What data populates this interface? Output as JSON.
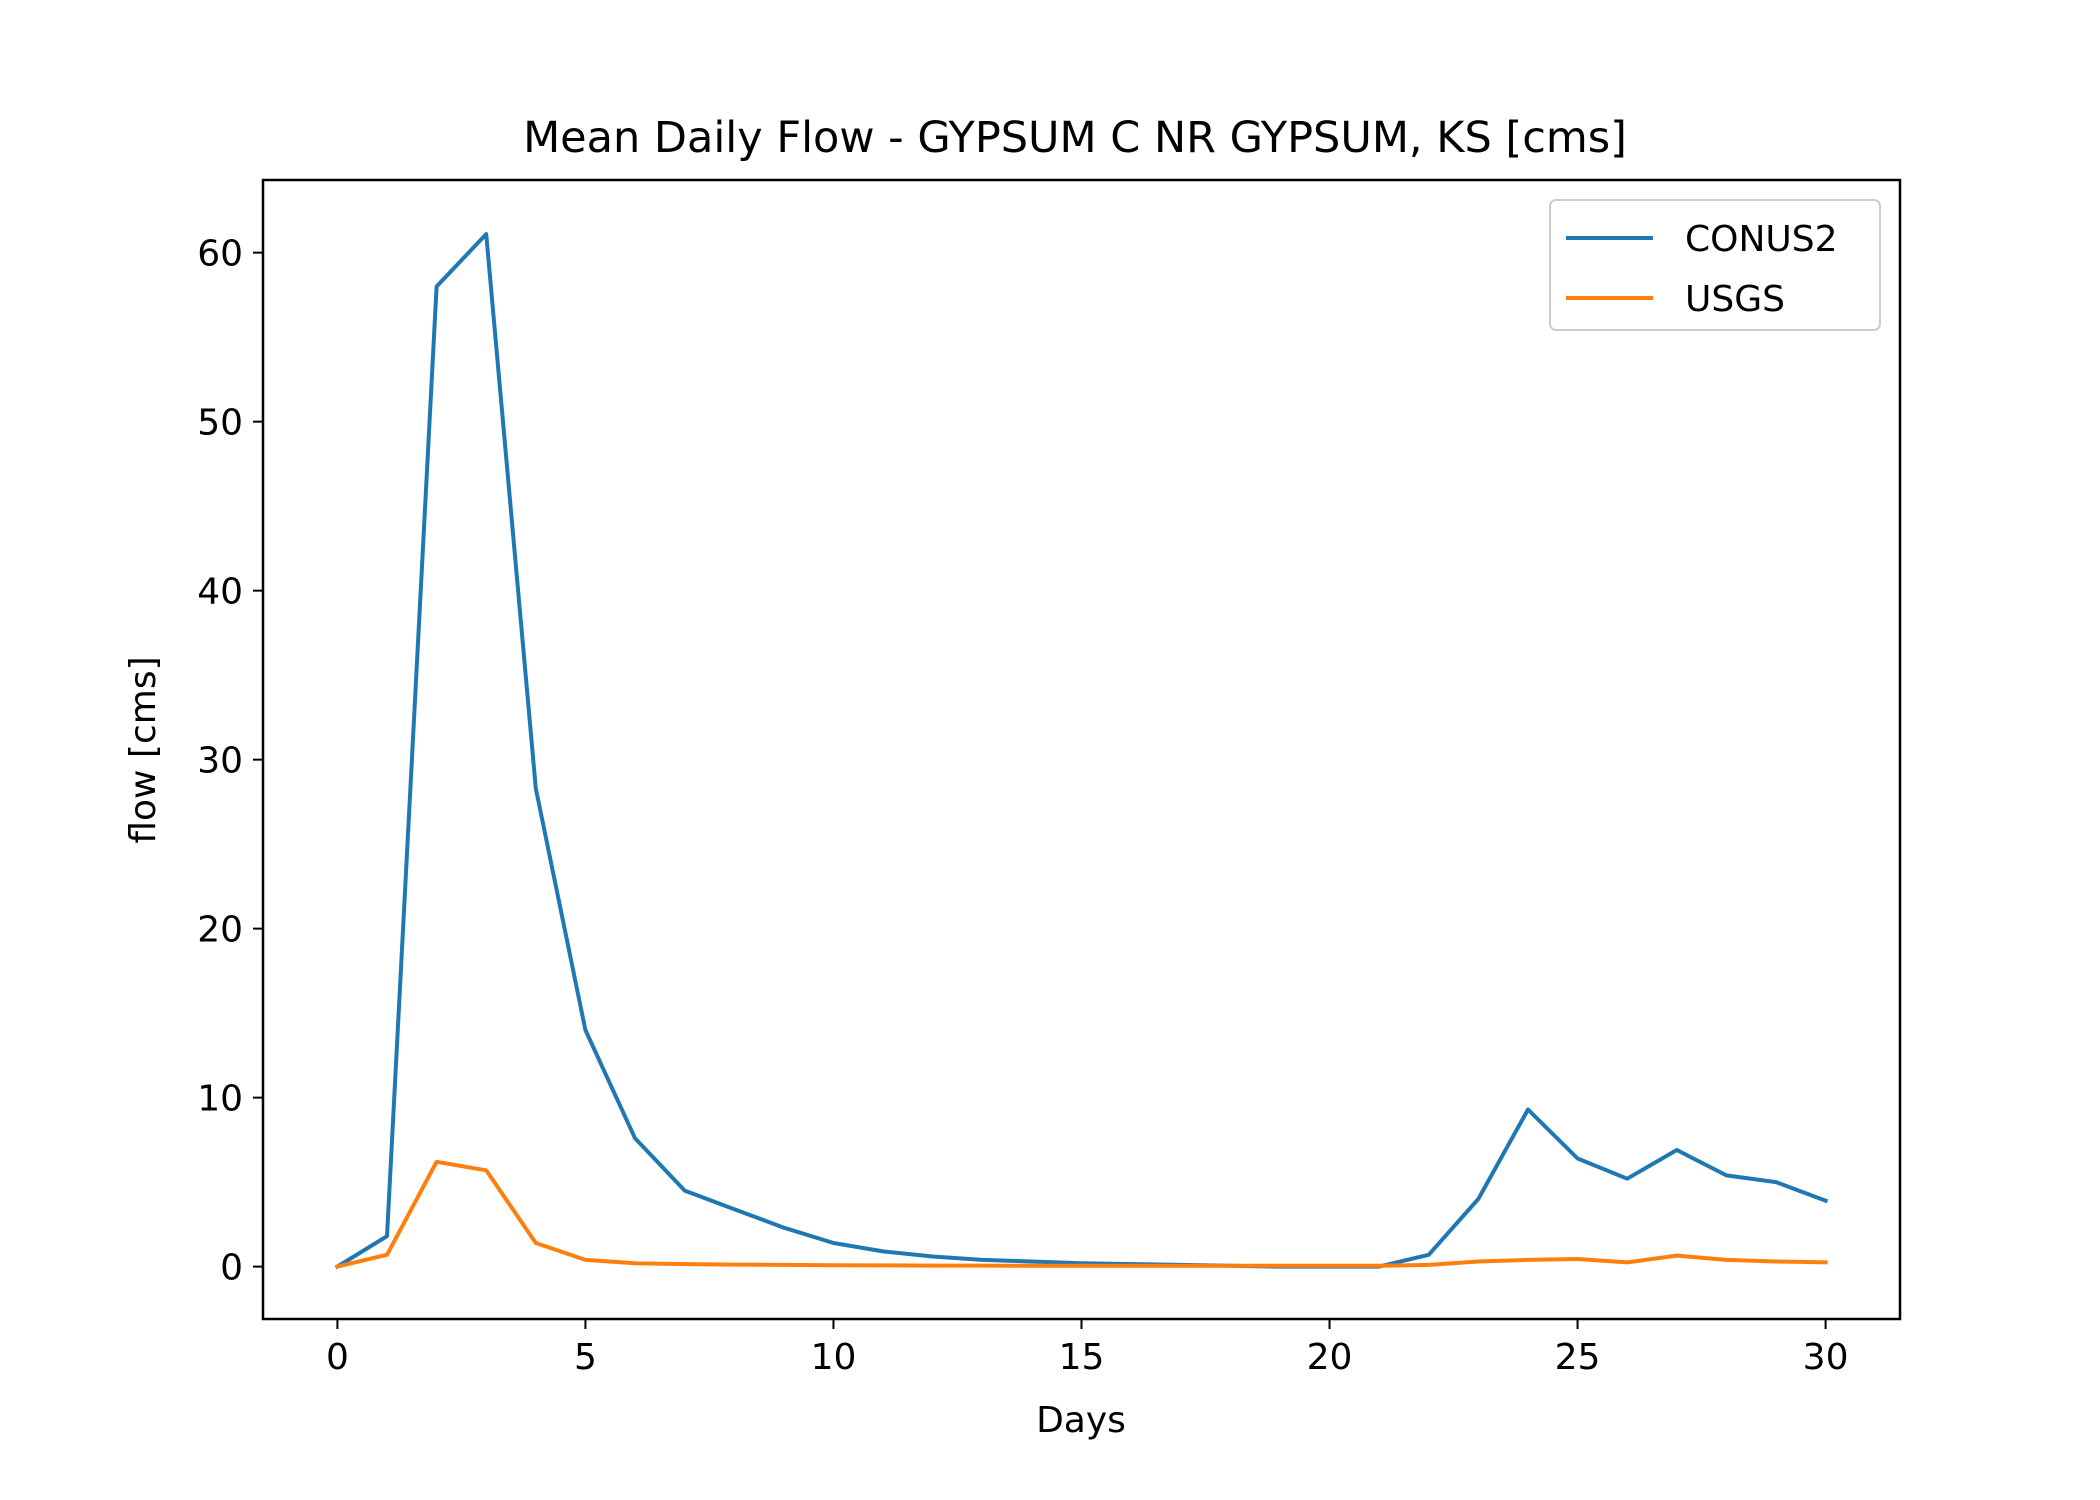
{
  "chart_data": {
    "type": "line",
    "title": "Mean Daily Flow - GYPSUM C NR GYPSUM, KS [cms]",
    "xlabel": "Days",
    "ylabel": "flow [cms]",
    "xlim": [
      -1.5,
      31.5
    ],
    "ylim": [
      -3.1,
      64.3
    ],
    "xticks": [
      0,
      5,
      10,
      15,
      20,
      25,
      30
    ],
    "yticks": [
      0,
      10,
      20,
      30,
      40,
      50,
      60
    ],
    "xtick_labels": [
      "0",
      "5",
      "10",
      "15",
      "20",
      "25",
      "30"
    ],
    "ytick_labels": [
      "0",
      "10",
      "20",
      "30",
      "40",
      "50",
      "60"
    ],
    "grid": false,
    "legend_position": "top-right",
    "x": [
      0,
      1,
      2,
      3,
      4,
      5,
      6,
      7,
      8,
      9,
      10,
      11,
      12,
      13,
      14,
      15,
      16,
      17,
      18,
      19,
      20,
      21,
      22,
      23,
      24,
      25,
      26,
      27,
      28,
      29,
      30
    ],
    "series": [
      {
        "name": "CONUS2",
        "color": "#1f77b4",
        "values": [
          0.0,
          1.8,
          58.0,
          61.1,
          28.3,
          14.0,
          7.6,
          4.5,
          3.4,
          2.3,
          1.4,
          0.9,
          0.6,
          0.4,
          0.3,
          0.2,
          0.15,
          0.1,
          0.05,
          0.0,
          0.0,
          0.0,
          0.7,
          4.0,
          9.3,
          6.4,
          5.2,
          6.9,
          5.4,
          5.0,
          3.9
        ]
      },
      {
        "name": "USGS",
        "color": "#ff7f0e",
        "values": [
          0.0,
          0.7,
          6.2,
          5.7,
          1.4,
          0.4,
          0.2,
          0.15,
          0.12,
          0.1,
          0.08,
          0.07,
          0.06,
          0.06,
          0.05,
          0.05,
          0.05,
          0.05,
          0.05,
          0.05,
          0.05,
          0.05,
          0.1,
          0.3,
          0.4,
          0.45,
          0.25,
          0.65,
          0.4,
          0.3,
          0.25
        ]
      }
    ]
  }
}
